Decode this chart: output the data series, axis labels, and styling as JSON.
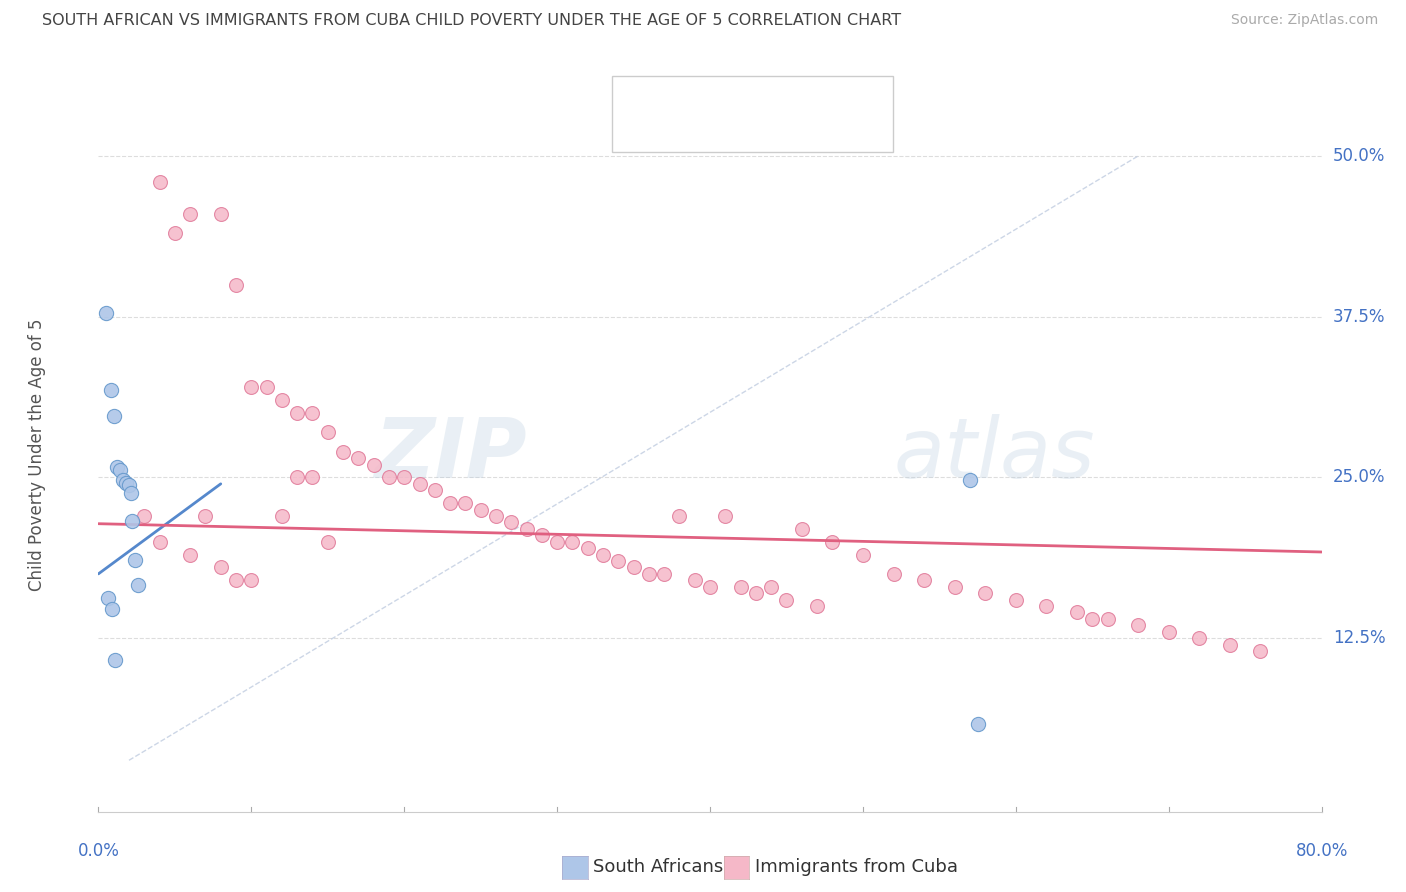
{
  "title": "SOUTH AFRICAN VS IMMIGRANTS FROM CUBA CHILD POVERTY UNDER THE AGE OF 5 CORRELATION CHART",
  "source": "Source: ZipAtlas.com",
  "ylabel": "Child Poverty Under the Age of 5",
  "ytick_labels": [
    "12.5%",
    "25.0%",
    "37.5%",
    "50.0%"
  ],
  "ytick_values": [
    0.125,
    0.25,
    0.375,
    0.5
  ],
  "xlim": [
    0.0,
    0.8
  ],
  "ylim": [
    -0.01,
    0.545
  ],
  "background_color": "#ffffff",
  "grid_color": "#dddddd",
  "scatter_blue_color": "#aec6e8",
  "scatter_pink_color": "#f5b8c8",
  "scatter_blue_edge": "#6699cc",
  "scatter_pink_edge": "#e07898",
  "line_blue_color": "#5588cc",
  "line_pink_color": "#e06080",
  "tick_label_color": "#4472c4",
  "title_fontsize": 11.5,
  "source_fontsize": 10,
  "tick_fontsize": 12,
  "ylabel_fontsize": 12,
  "legend_fontsize": 13,
  "watermark_zip_color": "#c5d5e5",
  "watermark_atlas_color": "#c5d5e5",
  "blue_scatter_x": [
    0.005,
    0.008,
    0.01,
    0.012,
    0.014,
    0.016,
    0.018,
    0.02,
    0.021,
    0.022,
    0.024,
    0.026,
    0.006,
    0.009,
    0.011,
    0.57,
    0.575
  ],
  "blue_scatter_y": [
    0.378,
    0.318,
    0.298,
    0.258,
    0.256,
    0.248,
    0.246,
    0.244,
    0.238,
    0.216,
    0.186,
    0.166,
    0.156,
    0.148,
    0.108,
    0.248,
    0.058
  ],
  "pink_scatter_x": [
    0.03,
    0.04,
    0.04,
    0.05,
    0.06,
    0.06,
    0.07,
    0.08,
    0.08,
    0.09,
    0.09,
    0.1,
    0.1,
    0.11,
    0.12,
    0.12,
    0.13,
    0.13,
    0.14,
    0.14,
    0.15,
    0.15,
    0.16,
    0.17,
    0.18,
    0.19,
    0.2,
    0.21,
    0.22,
    0.23,
    0.24,
    0.25,
    0.26,
    0.27,
    0.28,
    0.29,
    0.3,
    0.31,
    0.32,
    0.33,
    0.34,
    0.35,
    0.36,
    0.37,
    0.38,
    0.39,
    0.4,
    0.41,
    0.42,
    0.43,
    0.44,
    0.45,
    0.46,
    0.47,
    0.48,
    0.5,
    0.52,
    0.54,
    0.56,
    0.58,
    0.6,
    0.62,
    0.64,
    0.65,
    0.66,
    0.68,
    0.7,
    0.72,
    0.74,
    0.76
  ],
  "pink_scatter_y": [
    0.22,
    0.48,
    0.2,
    0.44,
    0.455,
    0.19,
    0.22,
    0.455,
    0.18,
    0.4,
    0.17,
    0.32,
    0.17,
    0.32,
    0.31,
    0.22,
    0.3,
    0.25,
    0.3,
    0.25,
    0.285,
    0.2,
    0.27,
    0.265,
    0.26,
    0.25,
    0.25,
    0.245,
    0.24,
    0.23,
    0.23,
    0.225,
    0.22,
    0.215,
    0.21,
    0.205,
    0.2,
    0.2,
    0.195,
    0.19,
    0.185,
    0.18,
    0.175,
    0.175,
    0.22,
    0.17,
    0.165,
    0.22,
    0.165,
    0.16,
    0.165,
    0.155,
    0.21,
    0.15,
    0.2,
    0.19,
    0.175,
    0.17,
    0.165,
    0.16,
    0.155,
    0.15,
    0.145,
    0.14,
    0.14,
    0.135,
    0.13,
    0.125,
    0.12,
    0.115
  ]
}
